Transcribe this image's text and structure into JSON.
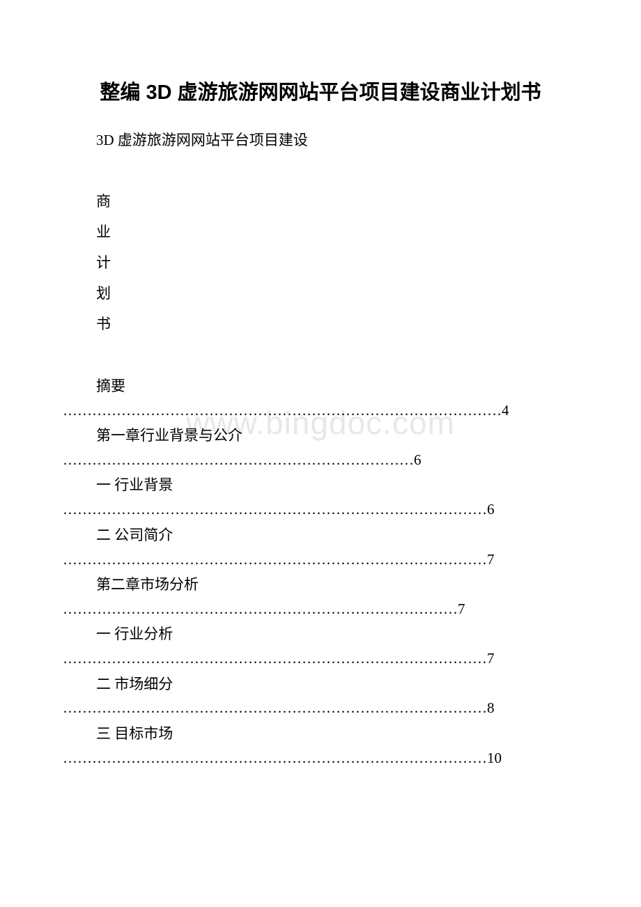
{
  "title": "整编 3D 虚游旅游网网站平台项目建设商业计划书",
  "subtitle": "3D 虚游旅游网网站平台项目建设",
  "vertical_chars": [
    "商",
    "业",
    "计",
    "划",
    "书"
  ],
  "watermark": "www.bingdoc.com",
  "toc": [
    {
      "label": "摘要",
      "dots": "………………………………………………………………………………4",
      "dots_style": "full"
    },
    {
      "label": "第一章行业背景与公介",
      "dots": "………………………………………………………………6"
    },
    {
      "label": "一 行业背景",
      "dots": "……………………………………………………………………………6"
    },
    {
      "label": "二 公司简介",
      "dots": "……………………………………………………………………………7"
    },
    {
      "label": "第二章市场分析",
      "dots": "………………………………………………………………………7"
    },
    {
      "label": "一 行业分析",
      "dots": "……………………………………………………………………………7"
    },
    {
      "label": "二 市场细分",
      "dots": "……………………………………………………………………………8"
    },
    {
      "label": "三 目标市场",
      "dots": "……………………………………………………………………………10"
    }
  ]
}
